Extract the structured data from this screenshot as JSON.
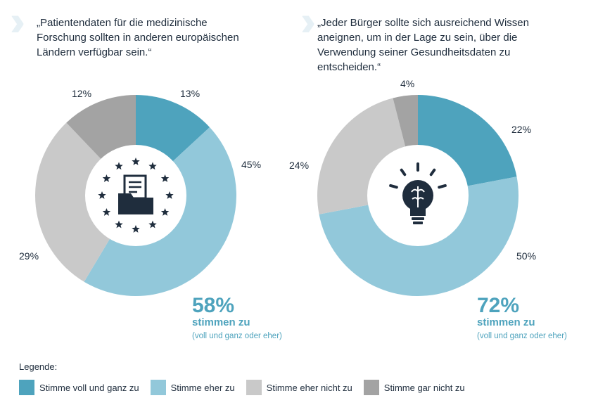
{
  "chart_data": [
    {
      "type": "pie",
      "title": "„Patientendaten für die medizinische Forschung sollten in anderen europäischen Ländern verfügbar sein.“",
      "categories": [
        "Stimme voll und ganz zu",
        "Stimme eher zu",
        "Stimme eher nicht zu",
        "Stimme gar nicht zu"
      ],
      "values": [
        13,
        45,
        29,
        12
      ],
      "value_labels": [
        "13%",
        "45%",
        "29%",
        "12%"
      ],
      "summary_value": "58%",
      "summary_label": "stimmen zu",
      "summary_note": "(voll und ganz oder eher)",
      "icon": "eu-stars-document-folder-icon"
    },
    {
      "type": "pie",
      "title": "„Jeder Bürger sollte sich ausreichend Wissen aneignen, um in der Lage zu sein, über die Verwendung seiner Gesundheitsdaten zu entscheiden.“",
      "categories": [
        "Stimme voll und ganz zu",
        "Stimme eher zu",
        "Stimme eher nicht zu",
        "Stimme gar nicht zu"
      ],
      "values": [
        22,
        50,
        24,
        4
      ],
      "value_labels": [
        "22%",
        "50%",
        "24%",
        "4%"
      ],
      "summary_value": "72%",
      "summary_label": "stimmen zu",
      "summary_note": "(voll und ganz oder eher)",
      "icon": "lightbulb-brain-icon"
    }
  ],
  "quote1_lines": [
    "„Patientendaten für die medizinische",
    "Forschung sollten in anderen europäischen",
    "Ländern verfügbar sein.“"
  ],
  "quote2_lines": [
    "„Jeder Bürger sollte sich ausreichend Wissen",
    "aneignen, um in der Lage zu sein, über die",
    "Verwendung seiner Gesundheitsdaten zu",
    "entscheiden.“"
  ],
  "legend": {
    "title": "Legende:",
    "items": [
      {
        "label": "Stimme voll und ganz zu",
        "color": "#4ea3bd"
      },
      {
        "label": "Stimme eher zu",
        "color": "#92c8da"
      },
      {
        "label": "Stimme eher nicht zu",
        "color": "#c9c9c9"
      },
      {
        "label": "Stimme gar nicht zu",
        "color": "#a3a3a3"
      }
    ]
  }
}
